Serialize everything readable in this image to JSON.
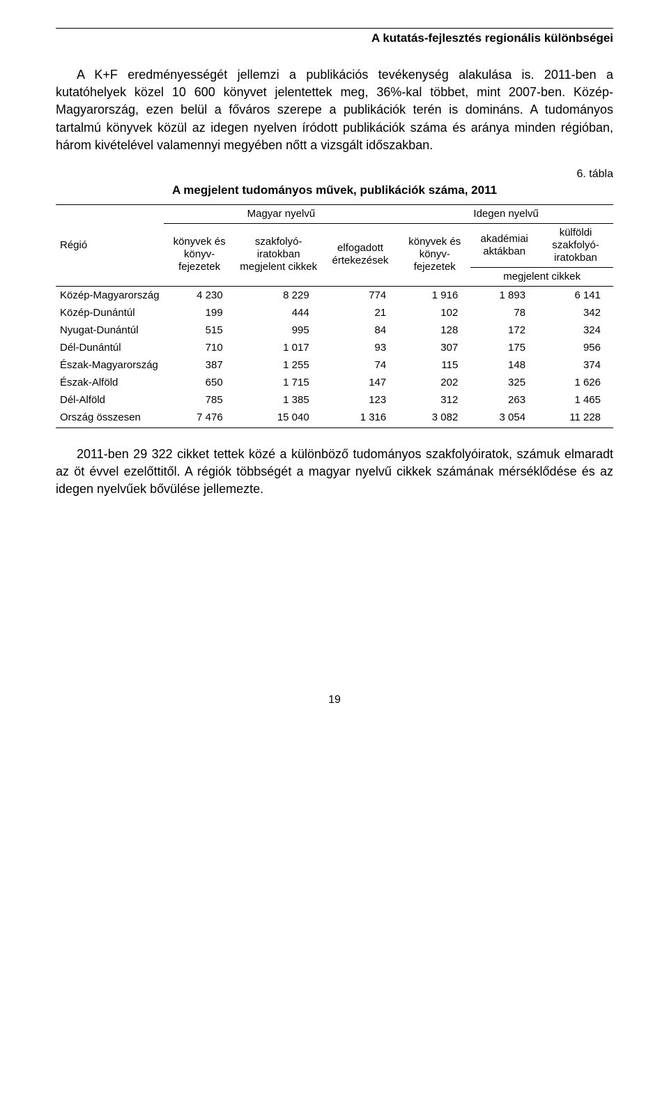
{
  "header": {
    "title": "A kutatás-fejlesztés regionális különbségei"
  },
  "paragraph1": "A K+F eredményességét jellemzi a publikációs tevékenység alakulása is. 2011-ben a kutatóhelyek közel 10 600 könyvet jelentettek meg, 36%-kal többet, mint 2007-ben. Közép-Magyarország, ezen belül a főváros szerepe a publikációk terén is domináns. A tudományos tartalmú könyvek közül az idegen nyelven íródott publikációk száma és aránya minden régióban, három kivételével valamennyi megyében nőtt a vizsgált időszakban.",
  "table": {
    "label": "6. tábla",
    "title": "A megjelent tudományos művek, publikációk száma, 2011",
    "headers": {
      "region": "Régió",
      "hungarian": "Magyar nyelvű",
      "foreign": "Idegen nyelvű",
      "books_hu": "könyvek és könyv-fejezetek",
      "journals_hu": "szakfolyó-iratokban megjelent cikkek",
      "dissertations": "elfogadott értekezések",
      "books_for": "könyvek és könyv-fejezetek",
      "akademiai": "akadémiai aktákban",
      "kulfoldi": "külföldi szakfolyó-iratokban",
      "megjelent": "megjelent cikkek"
    },
    "rows": [
      {
        "region": "Közép-Magyarország",
        "c1": "4 230",
        "c2": "8 229",
        "c3": "774",
        "c4": "1 916",
        "c5": "1 893",
        "c6": "6 141"
      },
      {
        "region": "Közép-Dunántúl",
        "c1": "199",
        "c2": "444",
        "c3": "21",
        "c4": "102",
        "c5": "78",
        "c6": "342"
      },
      {
        "region": "Nyugat-Dunántúl",
        "c1": "515",
        "c2": "995",
        "c3": "84",
        "c4": "128",
        "c5": "172",
        "c6": "324"
      },
      {
        "region": "Dél-Dunántúl",
        "c1": "710",
        "c2": "1 017",
        "c3": "93",
        "c4": "307",
        "c5": "175",
        "c6": "956"
      },
      {
        "region": "Észak-Magyarország",
        "c1": "387",
        "c2": "1 255",
        "c3": "74",
        "c4": "115",
        "c5": "148",
        "c6": "374"
      },
      {
        "region": "Észak-Alföld",
        "c1": "650",
        "c2": "1 715",
        "c3": "147",
        "c4": "202",
        "c5": "325",
        "c6": "1 626"
      },
      {
        "region": "Dél-Alföld",
        "c1": "785",
        "c2": "1 385",
        "c3": "123",
        "c4": "312",
        "c5": "263",
        "c6": "1 465"
      },
      {
        "region": "Ország összesen",
        "c1": "7 476",
        "c2": "15 040",
        "c3": "1 316",
        "c4": "3 082",
        "c5": "3 054",
        "c6": "11 228"
      }
    ]
  },
  "paragraph2": "2011-ben 29 322 cikket tettek közé a különböző tudományos szakfolyóiratok, számuk elmaradt az öt évvel ezelőttitől. A régiók többségét a magyar nyelvű cikkek számának mérséklődése és az idegen nyelvűek bővülése jellemezte.",
  "footer": {
    "page": "19"
  }
}
